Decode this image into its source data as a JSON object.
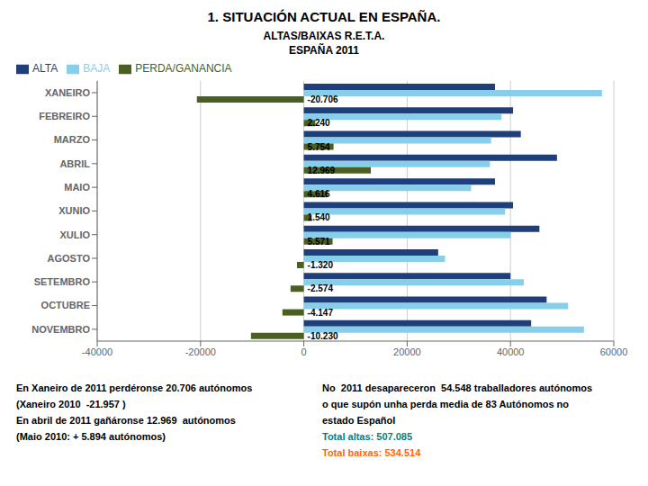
{
  "chart_data": {
    "type": "bar",
    "orientation": "horizontal",
    "title": "1. SITUACIÓN ACTUAL EN ESPAÑA.",
    "subtitle": [
      "ALTAS/BAIXAS R.E.T.A.",
      "ESPAÑA 2011"
    ],
    "categories": [
      "NOVEMBRO",
      "OCTUBRE",
      "SETEMBRO",
      "AGOSTO",
      "XULIO",
      "XUNIO",
      "MAIO",
      "ABRIL",
      "MARZO",
      "FEBREIRO",
      "XANEIRO"
    ],
    "series": [
      {
        "name": "ALTA",
        "color": "#1F3F7A",
        "values": [
          44000,
          47000,
          40000,
          26000,
          45600,
          40500,
          37000,
          49000,
          42000,
          40500,
          37000
        ]
      },
      {
        "name": "BAJA",
        "color": "#87CEEB",
        "values": [
          54230,
          51147,
          42574,
          27320,
          40029,
          38960,
          32384,
          36031,
          36246,
          38260,
          57706
        ]
      },
      {
        "name": "PERDA/GANANCIA",
        "color": "#4A6020",
        "values": [
          -10230,
          -4147,
          -2574,
          -1320,
          5571,
          1540,
          4616,
          12969,
          5754,
          2240,
          -20706
        ],
        "value_labels": [
          "-10.230",
          "-4.147",
          "-2.574",
          "-1.320",
          "5.571",
          "1.540",
          "4.616",
          "12.969",
          "5.754",
          "2.240",
          "-20.706"
        ]
      }
    ],
    "data_labels": true,
    "xlim": [
      -40000,
      60000
    ],
    "xticks": [
      -40000,
      -20000,
      0,
      20000,
      40000,
      60000
    ],
    "grid": true,
    "annotations": [
      "En Xaneiro de 2011 perdéronse 20.706 autónomos",
      "(Xaneiro 2010  -21.957 )",
      "En abril de 2011 gañáronse 12.969  autónomos",
      "(Maio 2010: + 5.894 autónomos)",
      "No  2011 desapareceron  54.548 traballadores autónomos",
      "o que supón unha perda media de 83 Autónomos no",
      "estado Español",
      {
        "text": "Total altas: 507.085",
        "color": "#008080"
      },
      {
        "text": "Total baixas: 534.514",
        "color": "#FF6600"
      }
    ]
  }
}
